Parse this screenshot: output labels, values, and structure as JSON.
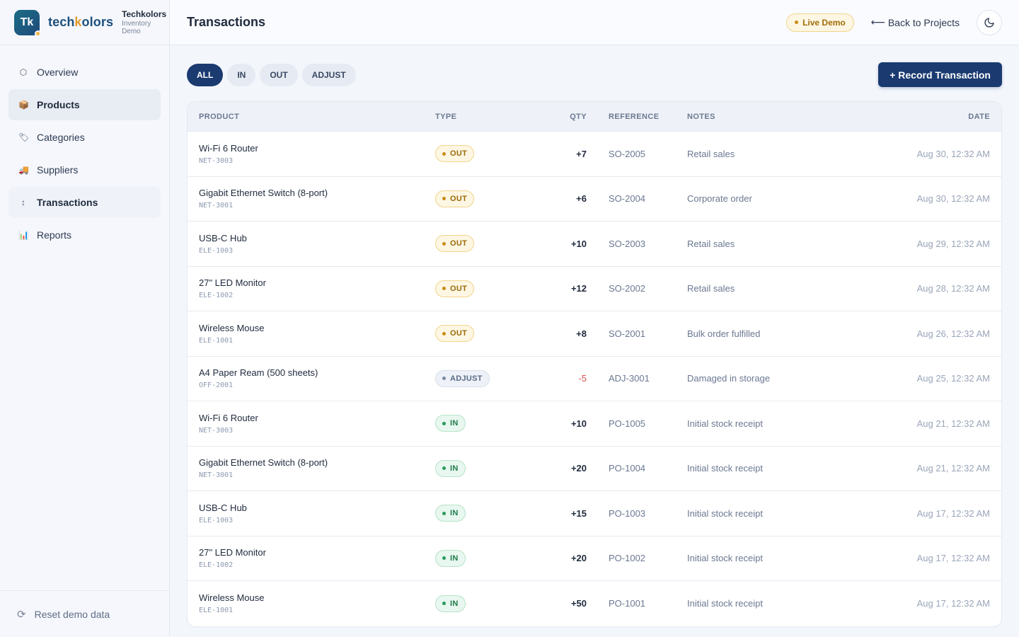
{
  "brand": {
    "logo": "Tk",
    "word_a": "tech",
    "word_k": "k",
    "word_b": "olors",
    "name": "Techkolors",
    "sub1": "Inventory",
    "sub2": "Demo"
  },
  "sidebar": {
    "items": [
      {
        "label": "Overview",
        "icon": "hexagon-icon",
        "glyph": "⬡"
      },
      {
        "label": "Products",
        "icon": "package-icon",
        "glyph": "📦"
      },
      {
        "label": "Categories",
        "icon": "tag-icon",
        "glyph": "🏷"
      },
      {
        "label": "Suppliers",
        "icon": "truck-icon",
        "glyph": "🚚"
      },
      {
        "label": "Transactions",
        "icon": "arrows-updown-icon",
        "glyph": "↕"
      },
      {
        "label": "Reports",
        "icon": "bar-chart-icon",
        "glyph": "📊"
      }
    ],
    "reset_label": "Reset demo data"
  },
  "header": {
    "title": "Transactions",
    "live_badge": "Live Demo",
    "back_label": "Back to Projects"
  },
  "filters": [
    "ALL",
    "IN",
    "OUT",
    "ADJUST"
  ],
  "record_button": "+ Record Transaction",
  "table": {
    "columns": [
      "PRODUCT",
      "TYPE",
      "QTY",
      "REFERENCE",
      "NOTES",
      "DATE"
    ],
    "rows": [
      {
        "product": "Wi-Fi 6 Router",
        "sku": "NET-3003",
        "type": "OUT",
        "qty": "+7",
        "ref": "SO-2005",
        "notes": "Retail sales",
        "date": "Aug 30, 12:32 AM"
      },
      {
        "product": "Gigabit Ethernet Switch (8-port)",
        "sku": "NET-3001",
        "type": "OUT",
        "qty": "+6",
        "ref": "SO-2004",
        "notes": "Corporate order",
        "date": "Aug 30, 12:32 AM"
      },
      {
        "product": "USB-C Hub",
        "sku": "ELE-1003",
        "type": "OUT",
        "qty": "+10",
        "ref": "SO-2003",
        "notes": "Retail sales",
        "date": "Aug 29, 12:32 AM"
      },
      {
        "product": "27\" LED Monitor",
        "sku": "ELE-1002",
        "type": "OUT",
        "qty": "+12",
        "ref": "SO-2002",
        "notes": "Retail sales",
        "date": "Aug 28, 12:32 AM"
      },
      {
        "product": "Wireless Mouse",
        "sku": "ELE-1001",
        "type": "OUT",
        "qty": "+8",
        "ref": "SO-2001",
        "notes": "Bulk order fulfilled",
        "date": "Aug 26, 12:32 AM"
      },
      {
        "product": "A4 Paper Ream (500 sheets)",
        "sku": "OFF-2001",
        "type": "ADJUST",
        "qty": "-5",
        "ref": "ADJ-3001",
        "notes": "Damaged in storage",
        "date": "Aug 25, 12:32 AM"
      },
      {
        "product": "Wi-Fi 6 Router",
        "sku": "NET-3003",
        "type": "IN",
        "qty": "+10",
        "ref": "PO-1005",
        "notes": "Initial stock receipt",
        "date": "Aug 21, 12:32 AM"
      },
      {
        "product": "Gigabit Ethernet Switch (8-port)",
        "sku": "NET-3001",
        "type": "IN",
        "qty": "+20",
        "ref": "PO-1004",
        "notes": "Initial stock receipt",
        "date": "Aug 21, 12:32 AM"
      },
      {
        "product": "USB-C Hub",
        "sku": "ELE-1003",
        "type": "IN",
        "qty": "+15",
        "ref": "PO-1003",
        "notes": "Initial stock receipt",
        "date": "Aug 17, 12:32 AM"
      },
      {
        "product": "27\" LED Monitor",
        "sku": "ELE-1002",
        "type": "IN",
        "qty": "+20",
        "ref": "PO-1002",
        "notes": "Initial stock receipt",
        "date": "Aug 17, 12:32 AM"
      },
      {
        "product": "Wireless Mouse",
        "sku": "ELE-1001",
        "type": "IN",
        "qty": "+50",
        "ref": "PO-1001",
        "notes": "Initial stock receipt",
        "date": "Aug 17, 12:32 AM"
      }
    ]
  },
  "colors": {
    "primary": "#1a3a70",
    "out": "#c98c12",
    "in": "#2a9a5d",
    "adjust": "#7a8aa5",
    "negative": "#d9534f"
  }
}
